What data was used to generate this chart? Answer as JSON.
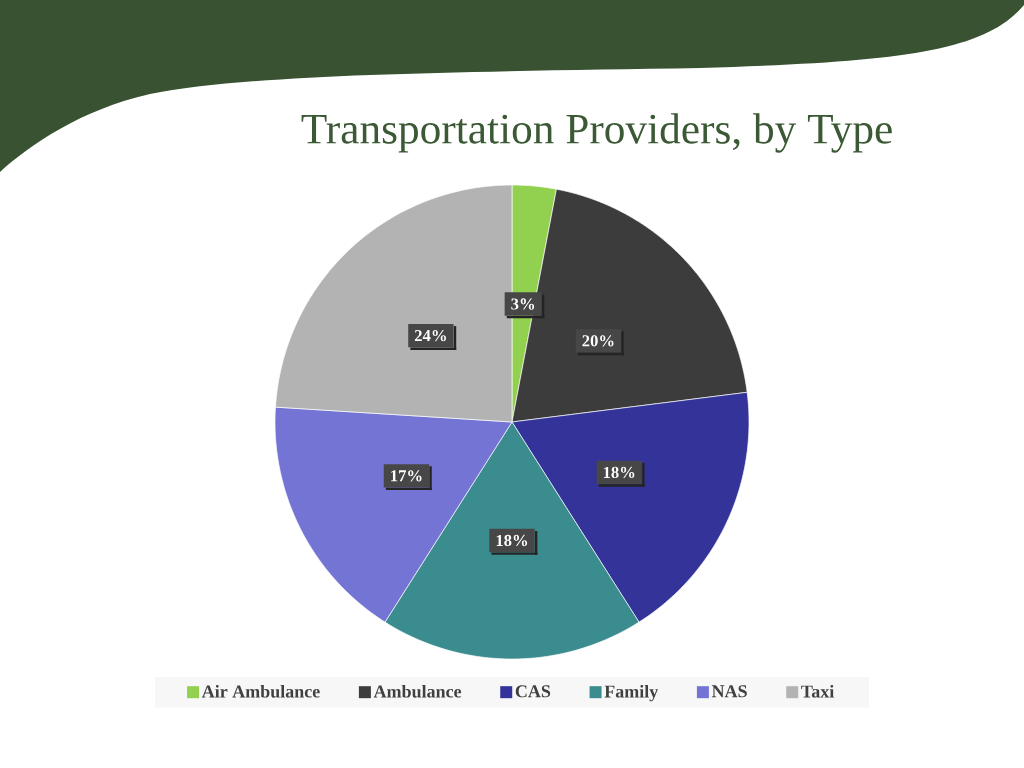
{
  "chart_data": {
    "type": "pie",
    "title": "Transportation Providers, by Type",
    "categories": [
      "Air Ambulance",
      "Ambulance",
      "CAS",
      "Family",
      "NAS",
      "Taxi"
    ],
    "values": [
      3,
      20,
      18,
      18,
      17,
      24
    ],
    "colors": [
      "#92d050",
      "#3c3c3c",
      "#333399",
      "#3a8c8f",
      "#7474d5",
      "#b3b3b3"
    ],
    "value_labels": [
      "3%",
      "20%",
      "18%",
      "18%",
      "17%",
      "24%"
    ],
    "legend": "bottom"
  }
}
